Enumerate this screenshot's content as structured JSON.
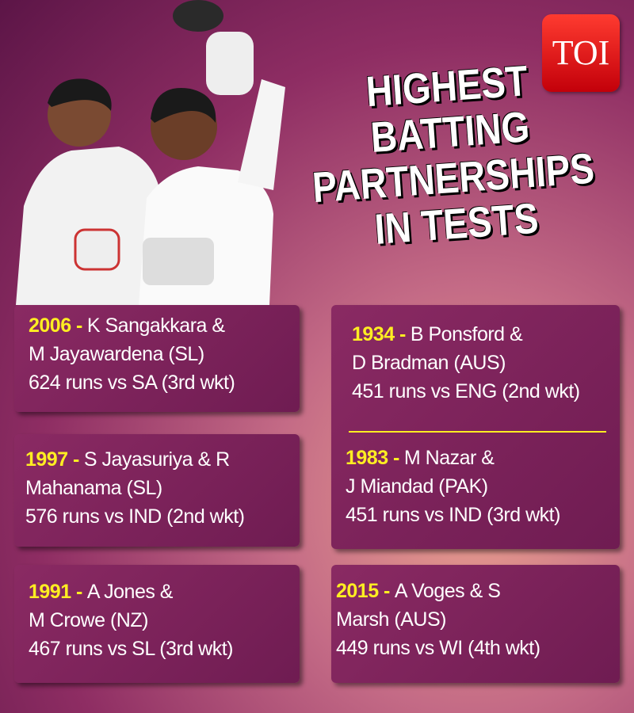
{
  "logo": "TOI",
  "title": {
    "lines": [
      "HIGHEST",
      "BATTING",
      "PARTNERSHIPS",
      "IN TESTS"
    ]
  },
  "records": [
    {
      "year": "2006 -",
      "lines": [
        "K Sangakkara &",
        "M Jayawardena (SL)",
        "624 runs vs SA (3rd wkt)"
      ]
    },
    {
      "year": "1997 -",
      "lines": [
        "S Jayasuriya & R",
        "Mahanama (SL)",
        "576 runs vs IND (2nd wkt)"
      ]
    },
    {
      "year": "1991 -",
      "lines": [
        "A Jones &",
        "M Crowe (NZ)",
        "467 runs vs SL (3rd wkt)"
      ]
    },
    {
      "year": "1934 -",
      "lines": [
        "B Ponsford &",
        "D Bradman (AUS)",
        "451 runs vs ENG (2nd wkt)"
      ]
    },
    {
      "year": "1983 -",
      "lines": [
        "M Nazar &",
        "J Miandad (PAK)",
        "451 runs vs IND (3rd wkt)"
      ]
    },
    {
      "year": "2015 -",
      "lines": [
        "A Voges & S",
        "Marsh (AUS)",
        "449 runs vs WI (4th wkt)"
      ]
    }
  ]
}
